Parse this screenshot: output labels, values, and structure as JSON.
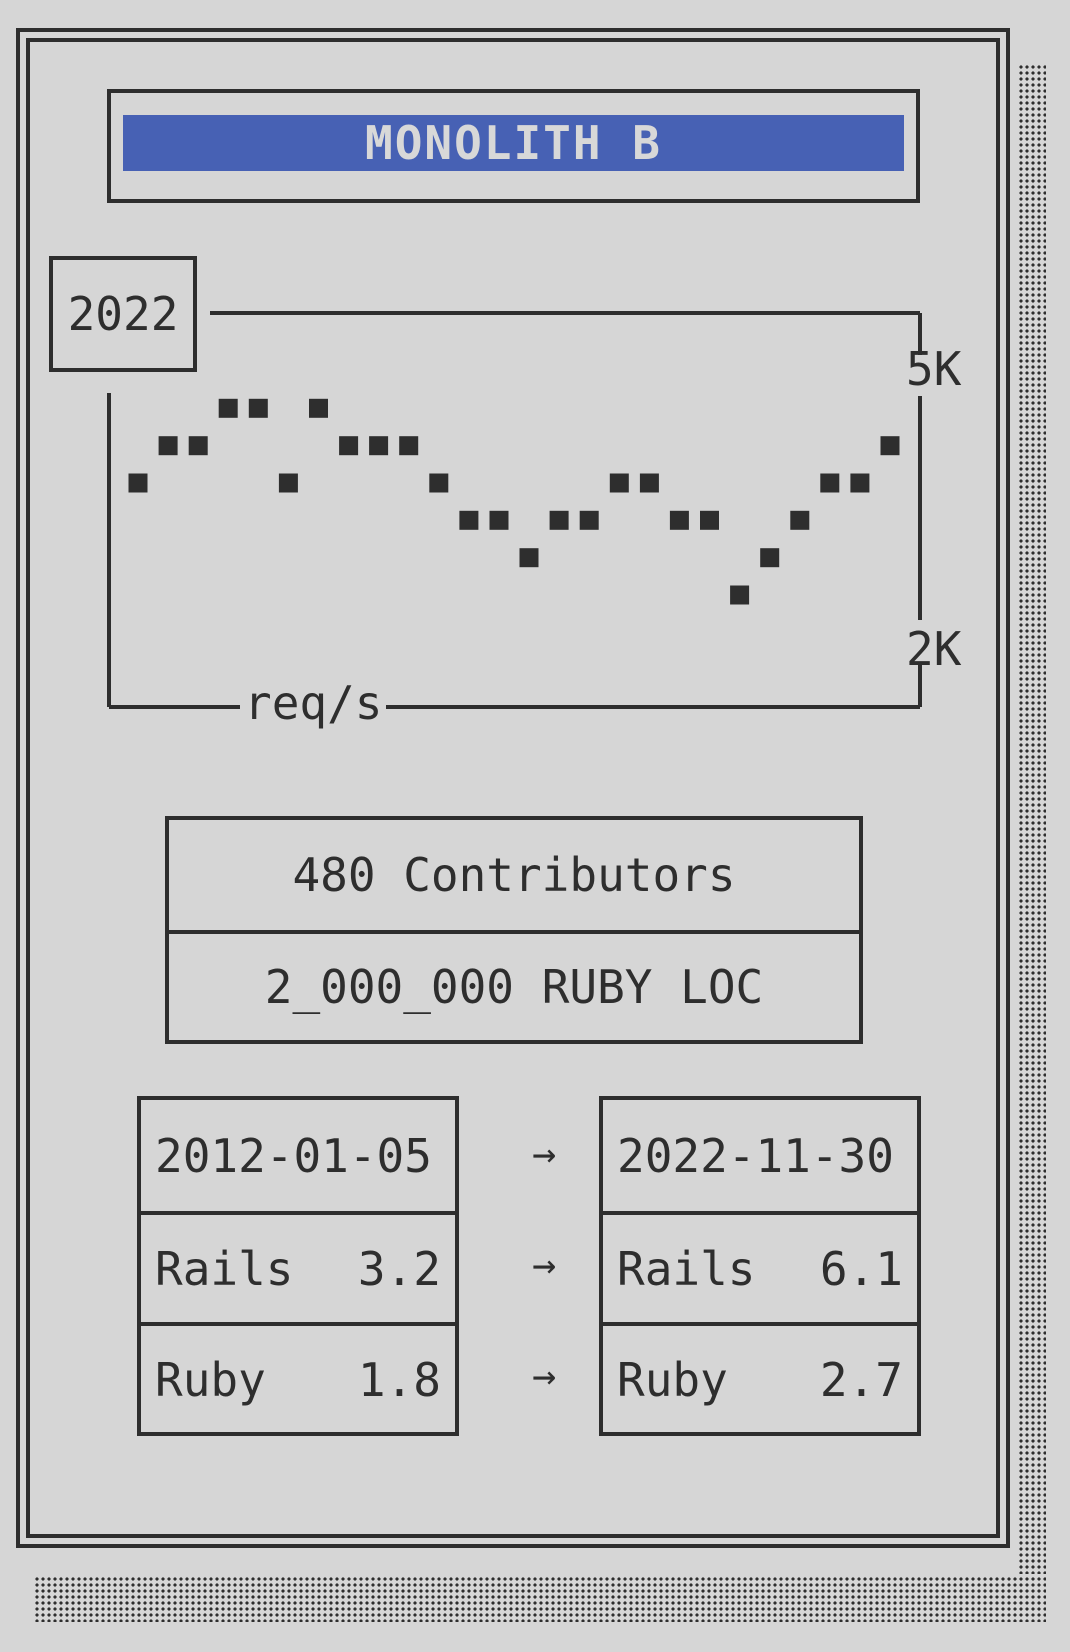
{
  "title": "MONOLITH B",
  "chart_data": {
    "type": "line",
    "year_label": "2022",
    "ylabel": "req/s",
    "y_ticks": [
      "5K",
      "2K"
    ],
    "ylim": [
      2000,
      5000
    ],
    "series": [
      {
        "values": [
          3800,
          4200,
          4200,
          4600,
          4600,
          3800,
          4600,
          4200,
          4200,
          4200,
          3800,
          3400,
          3400,
          3000,
          3400,
          3400,
          3800,
          3800,
          3400,
          3400,
          2600,
          3000,
          3400,
          3800,
          3800,
          4200
        ]
      }
    ]
  },
  "stats": {
    "contributors": "480 Contributors",
    "loc": "2_000_000 RUBY LOC"
  },
  "versions": {
    "from": {
      "date": "2012-01-05",
      "rails_label": "Rails",
      "rails_version": "3.2",
      "ruby_label": "Ruby",
      "ruby_version": "1.8"
    },
    "to": {
      "date": "2022-11-30",
      "rails_label": "Rails",
      "rails_version": "6.1",
      "ruby_label": "Ruby",
      "ruby_version": "2.7"
    },
    "arrow": "→"
  },
  "colors": {
    "background": "#d6d6d6",
    "ink": "#2e2e2e",
    "title_bar": "#4761b4"
  }
}
